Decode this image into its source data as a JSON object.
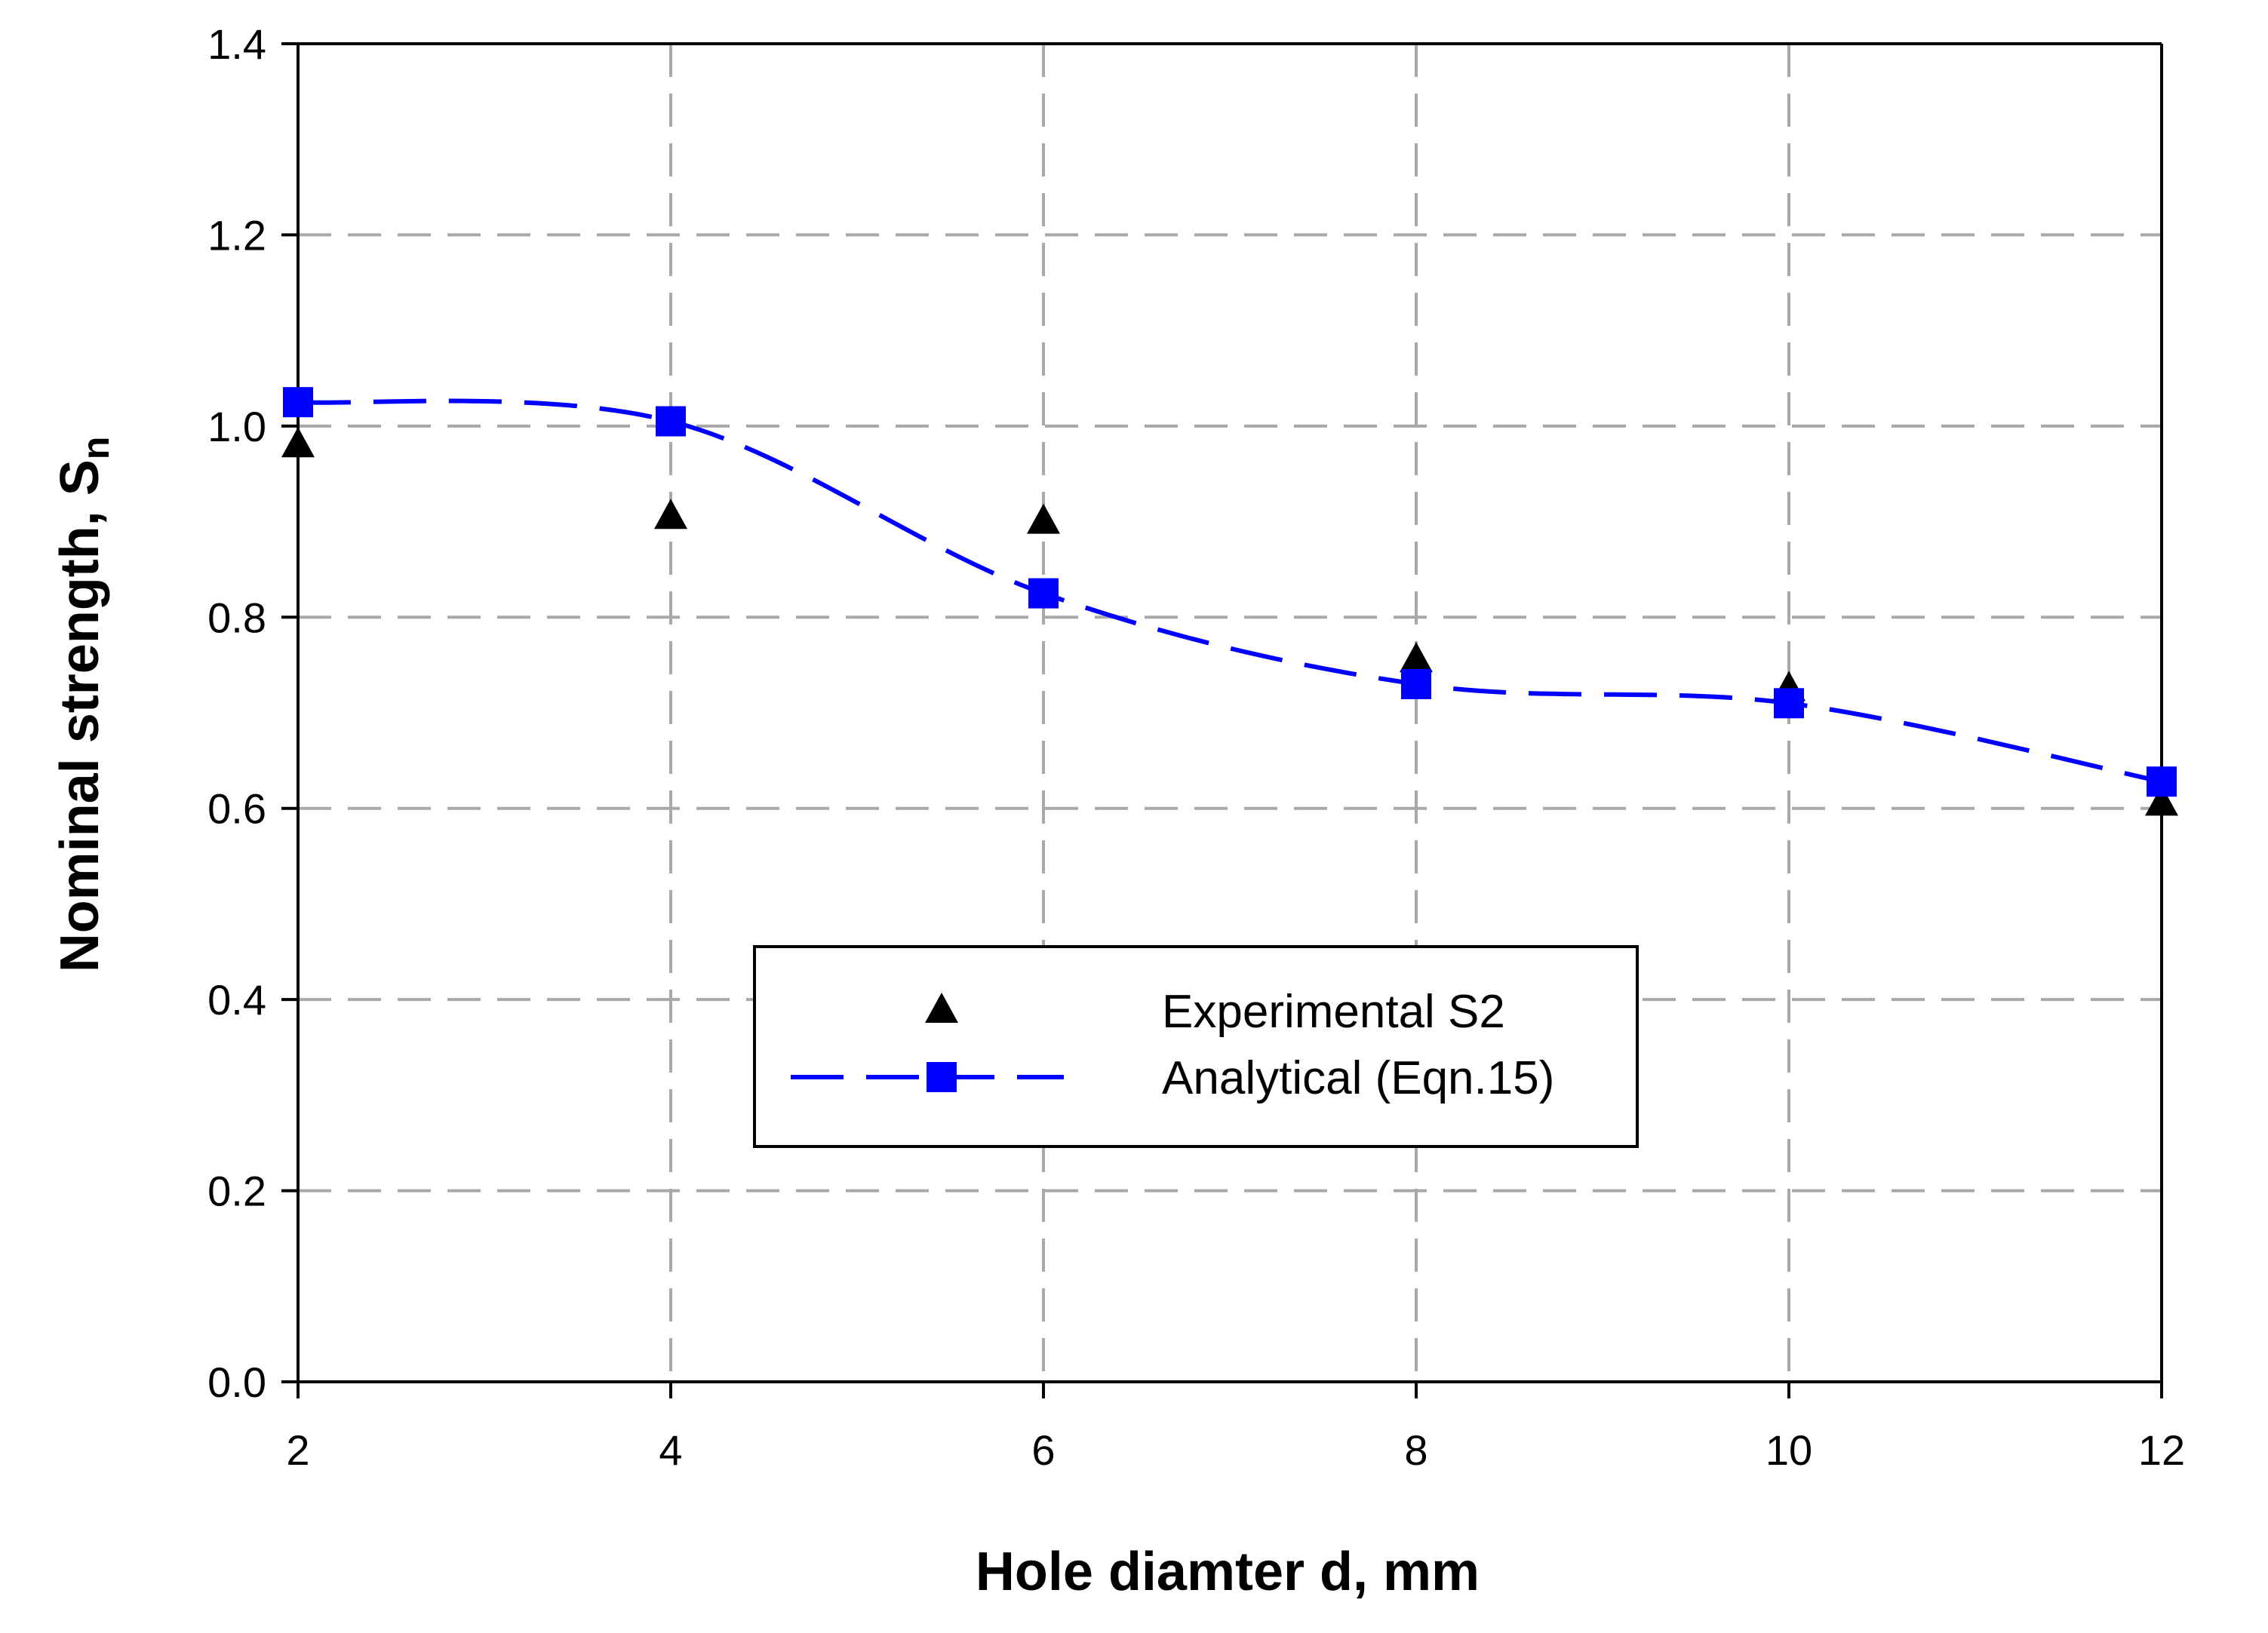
{
  "chart_data": {
    "type": "line",
    "title": "",
    "xlabel": "Hole diamter d, mm",
    "ylabel": "Nominal strength, S",
    "ylabel_subscript": "n",
    "xlim": [
      2,
      12
    ],
    "ylim": [
      0.0,
      1.4
    ],
    "xticks": [
      2,
      4,
      6,
      8,
      10,
      12
    ],
    "xtick_labels": [
      "2",
      "4",
      "6",
      "8",
      "10",
      "12"
    ],
    "yticks": [
      0.0,
      0.2,
      0.4,
      0.6,
      0.8,
      1.0,
      1.2,
      1.4
    ],
    "ytick_labels": [
      "0.0",
      "0.2",
      "0.4",
      "0.6",
      "0.8",
      "1.0",
      "1.2",
      "1.4"
    ],
    "grid": true,
    "legend_position": "center",
    "series": [
      {
        "name": "Experimental S2",
        "kind": "scatter",
        "marker": "triangle",
        "color": "#000000",
        "x": [
          2,
          4,
          6,
          8,
          10,
          12
        ],
        "y": [
          0.98,
          0.905,
          0.9,
          0.755,
          0.725,
          0.605
        ]
      },
      {
        "name": "Analytical (Eqn.15)",
        "kind": "line",
        "marker": "square",
        "line_style": "dashed",
        "smooth": true,
        "color": "#0000ff",
        "x": [
          2,
          4,
          6,
          8,
          10,
          12
        ],
        "y": [
          1.025,
          1.005,
          0.825,
          0.73,
          0.71,
          0.628
        ]
      }
    ]
  }
}
